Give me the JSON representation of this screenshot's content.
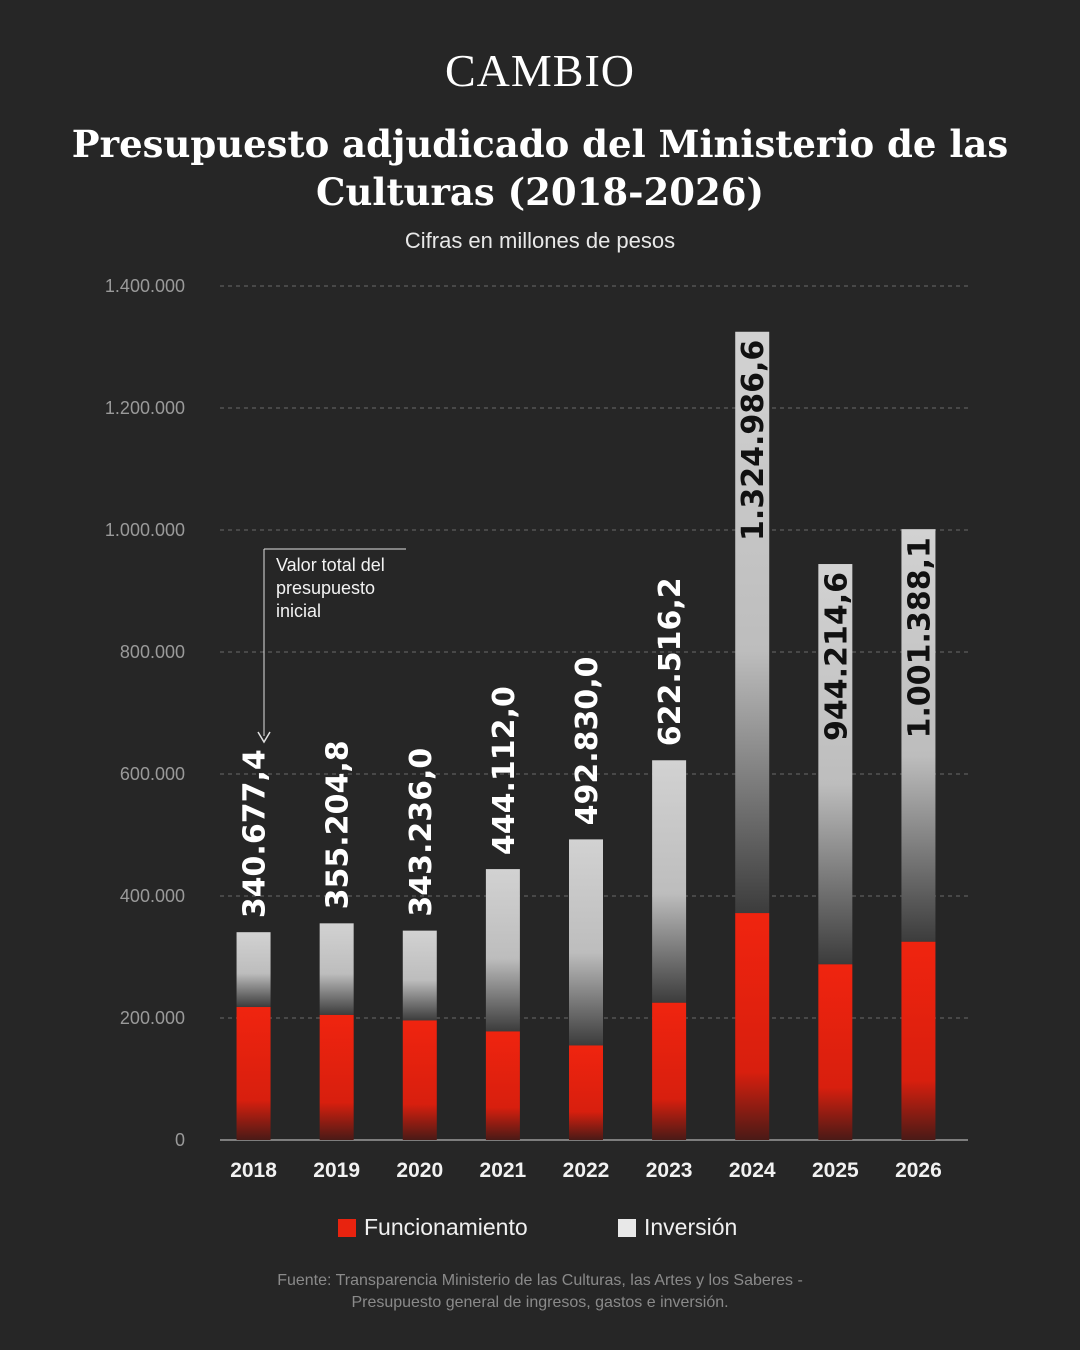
{
  "brand": "CAMBIO",
  "chart_data": {
    "type": "bar",
    "stacked": true,
    "title": "Presupuesto adjudicado del Ministerio de las Culturas (2018-2026)",
    "subtitle": "Cifras en millones de pesos",
    "categories": [
      "2018",
      "2019",
      "2020",
      "2021",
      "2022",
      "2023",
      "2024",
      "2025",
      "2026"
    ],
    "series": [
      {
        "name": "Funcionamiento",
        "color": "#e8230f",
        "values": [
          218000,
          205000,
          196000,
          178000,
          155000,
          225000,
          372000,
          288000,
          325000
        ]
      },
      {
        "name": "Inversión",
        "color": "#cfcfcf",
        "values": [
          122677,
          150205,
          147236,
          266112,
          337830,
          397516,
          952987,
          656215,
          676388
        ]
      }
    ],
    "totals": [
      340677.4,
      355204.8,
      343236.0,
      444112.0,
      492830.0,
      622516.2,
      1324986.6,
      944214.6,
      1001388.1
    ],
    "total_labels": [
      "340.677,4",
      "355.204,8",
      "343.236,0",
      "444.112,0",
      "492.830,0",
      "622.516,2",
      "1.324.986,6",
      "944.214,6",
      "1.001.388,1"
    ],
    "ylim": [
      0,
      1400000
    ],
    "yticks": [
      0,
      200000,
      400000,
      600000,
      800000,
      1000000,
      1200000,
      1400000
    ],
    "ytick_labels": [
      "0",
      "200.000",
      "400.000",
      "600.000",
      "800.000",
      "1.000.000",
      "1.200.000",
      "1.400.000"
    ],
    "grid": true,
    "legend_position": "bottom"
  },
  "annotation": "Valor total del presupuesto inicial",
  "source": "Fuente: Transparencia Ministerio de las Culturas, las Artes y los Saberes - Presupuesto general de ingresos, gastos e inversión.",
  "colors": {
    "background": "#262626",
    "funcionamiento": "#e8230f",
    "inversion": "#cfcfcf"
  }
}
